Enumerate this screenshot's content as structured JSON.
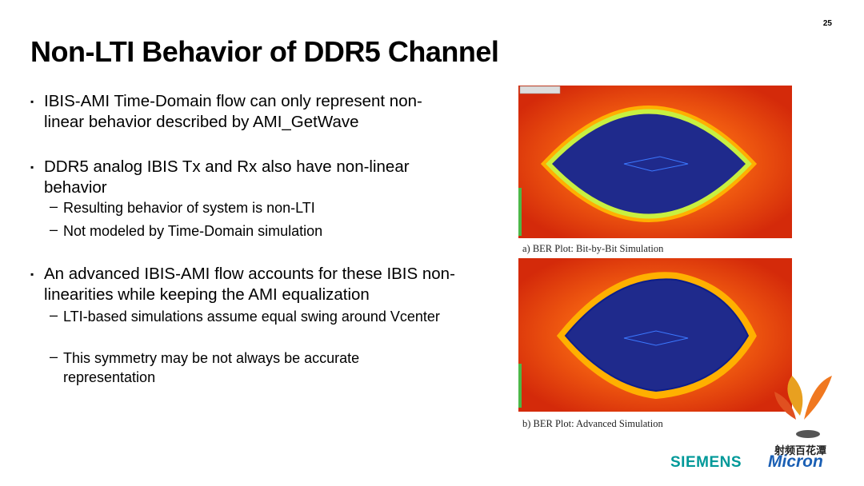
{
  "page_number": "25",
  "title": "Non-LTI Behavior of DDR5 Channel",
  "bullets": [
    {
      "text": "IBIS-AMI Time-Domain flow can only represent non-linear behavior described by AMI_GetWave",
      "subs": []
    },
    {
      "text": "DDR5 analog IBIS Tx and Rx also have non-linear behavior",
      "subs": [
        "Resulting behavior of system is non-LTI",
        "Not modeled by Time-Domain simulation"
      ]
    },
    {
      "text": "An advanced IBIS-AMI flow accounts for these IBIS non-linearities while keeping the AMI equalization",
      "subs": [
        "LTI-based simulations assume equal swing around Vcenter",
        "This symmetry may be not always be accurate representation"
      ]
    }
  ],
  "figures": [
    {
      "caption": "a) BER Plot: Bit-by-Bit Simulation"
    },
    {
      "caption": "b) BER Plot: Advanced Simulation"
    }
  ],
  "logos": {
    "siemens": "SIEMENS",
    "micron": "Micron",
    "watermark": "射频百花潭"
  }
}
